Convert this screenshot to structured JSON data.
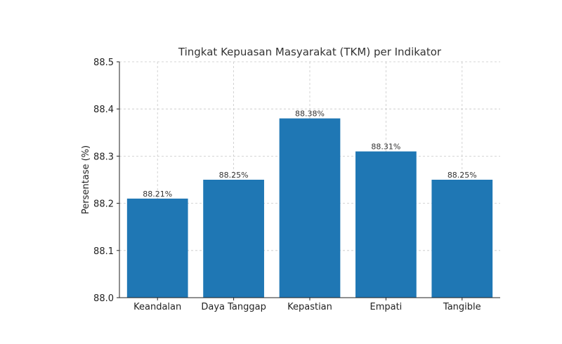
{
  "chart_data": {
    "type": "bar",
    "title": "Tingkat Kepuasan Masyarakat (TKM) per Indikator",
    "xlabel": "",
    "ylabel": "Persentase (%)",
    "categories": [
      "Keandalan",
      "Daya Tanggap",
      "Kepastian",
      "Empati",
      "Tangible"
    ],
    "values": [
      88.21,
      88.25,
      88.38,
      88.31,
      88.25
    ],
    "data_labels": [
      "88.21%",
      "88.25%",
      "88.38%",
      "88.31%",
      "88.25%"
    ],
    "ylim": [
      88.0,
      88.5
    ],
    "yticks": [
      88.0,
      88.1,
      88.2,
      88.3,
      88.4,
      88.5
    ],
    "ytick_labels": [
      "88.0",
      "88.1",
      "88.2",
      "88.3",
      "88.4",
      "88.5"
    ],
    "grid": true,
    "bar_color": "#1f77b4"
  }
}
